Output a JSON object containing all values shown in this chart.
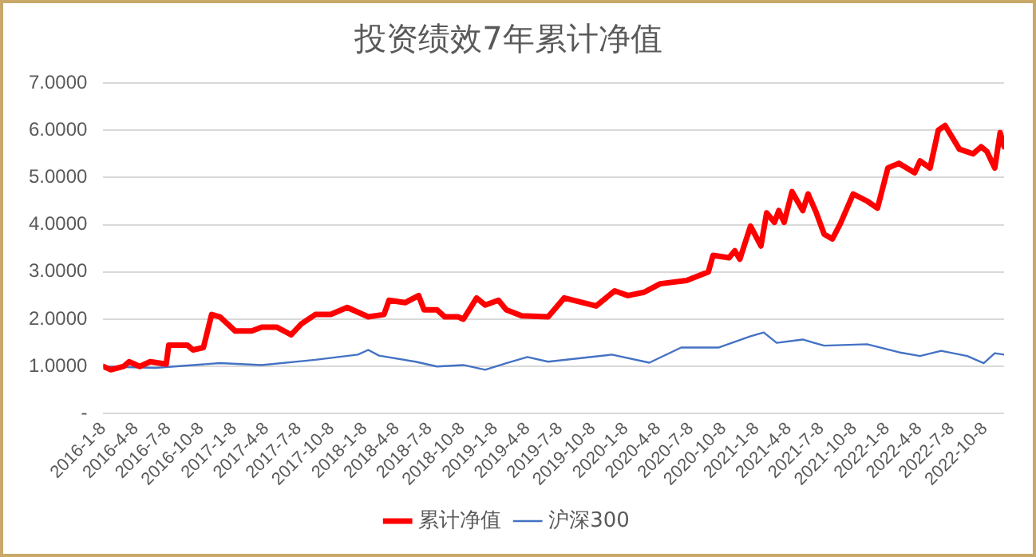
{
  "chart_data": {
    "type": "line",
    "title": "投资绩效7年累计净值",
    "xlim": [
      "2016-01-08",
      "2022-12-01"
    ],
    "xticks": [
      {
        "value": "2016-01-08",
        "label": "2016-1-8"
      },
      {
        "value": "2016-04-08",
        "label": "2016-4-8"
      },
      {
        "value": "2016-07-08",
        "label": "2016-7-8"
      },
      {
        "value": "2016-10-08",
        "label": "2016-10-8"
      },
      {
        "value": "2017-01-08",
        "label": "2017-1-8"
      },
      {
        "value": "2017-04-08",
        "label": "2017-4-8"
      },
      {
        "value": "2017-07-08",
        "label": "2017-7-8"
      },
      {
        "value": "2017-10-08",
        "label": "2017-10-8"
      },
      {
        "value": "2018-01-08",
        "label": "2018-1-8"
      },
      {
        "value": "2018-04-08",
        "label": "2018-4-8"
      },
      {
        "value": "2018-07-08",
        "label": "2018-7-8"
      },
      {
        "value": "2018-10-08",
        "label": "2018-10-8"
      },
      {
        "value": "2019-01-08",
        "label": "2019-1-8"
      },
      {
        "value": "2019-04-08",
        "label": "2019-4-8"
      },
      {
        "value": "2019-07-08",
        "label": "2019-7-8"
      },
      {
        "value": "2019-10-08",
        "label": "2019-10-8"
      },
      {
        "value": "2020-01-08",
        "label": "2020-1-8"
      },
      {
        "value": "2020-04-08",
        "label": "2020-4-8"
      },
      {
        "value": "2020-07-08",
        "label": "2020-7-8"
      },
      {
        "value": "2020-10-08",
        "label": "2020-10-8"
      },
      {
        "value": "2021-01-08",
        "label": "2021-1-8"
      },
      {
        "value": "2021-04-08",
        "label": "2021-4-8"
      },
      {
        "value": "2021-07-08",
        "label": "2021-7-8"
      },
      {
        "value": "2021-10-08",
        "label": "2021-10-8"
      },
      {
        "value": "2022-01-08",
        "label": "2022-1-8"
      },
      {
        "value": "2022-04-08",
        "label": "2022-4-8"
      },
      {
        "value": "2022-07-08",
        "label": "2022-7-8"
      },
      {
        "value": "2022-10-08",
        "label": "2022-10-8"
      }
    ],
    "ylim": [
      0,
      7
    ],
    "yticks": [
      {
        "value": 0,
        "label": "-"
      },
      {
        "value": 1,
        "label": "1.0000"
      },
      {
        "value": 2,
        "label": "2.0000"
      },
      {
        "value": 3,
        "label": "3.0000"
      },
      {
        "value": 4,
        "label": "4.0000"
      },
      {
        "value": 5,
        "label": "5.0000"
      },
      {
        "value": 6,
        "label": "6.0000"
      },
      {
        "value": 7,
        "label": "7.0000"
      }
    ],
    "grid": "y",
    "legend": "bottom",
    "marker": "none",
    "line_style": "solid",
    "series": [
      {
        "name": "累计净值",
        "color": "#ff0000",
        "x": [
          "2016-01-08",
          "2016-01-29",
          "2016-03-05",
          "2016-03-20",
          "2016-04-19",
          "2016-05-18",
          "2016-07-02",
          "2016-07-09",
          "2016-08-30",
          "2016-09-15",
          "2016-10-14",
          "2016-11-06",
          "2016-11-29",
          "2017-01-11",
          "2017-02-26",
          "2017-03-26",
          "2017-05-08",
          "2017-06-16",
          "2017-07-15",
          "2017-08-23",
          "2017-10-05",
          "2017-11-20",
          "2018-01-18",
          "2018-03-03",
          "2018-03-17",
          "2018-05-01",
          "2018-06-08",
          "2018-06-23",
          "2018-07-29",
          "2018-08-20",
          "2018-09-26",
          "2018-10-11",
          "2018-11-17",
          "2018-12-11",
          "2019-01-17",
          "2019-02-08",
          "2019-03-23",
          "2019-06-05",
          "2019-07-20",
          "2019-10-17",
          "2019-12-08",
          "2020-01-14",
          "2020-02-28",
          "2020-04-13",
          "2020-06-26",
          "2020-08-26",
          "2020-09-08",
          "2020-10-23",
          "2020-11-08",
          "2020-11-22",
          "2020-12-22",
          "2021-01-20",
          "2021-02-05",
          "2021-02-27",
          "2021-03-11",
          "2021-03-26",
          "2021-04-17",
          "2021-05-17",
          "2021-06-01",
          "2021-06-23",
          "2021-07-16",
          "2021-08-08",
          "2021-08-30",
          "2021-10-05",
          "2021-11-13",
          "2021-12-12",
          "2022-01-10",
          "2022-02-10",
          "2022-03-26",
          "2022-04-10",
          "2022-05-08",
          "2022-05-31",
          "2022-06-19",
          "2022-07-29",
          "2022-09-05",
          "2022-09-28",
          "2022-10-14",
          "2022-11-05",
          "2022-11-20",
          "2022-12-01"
        ],
        "values": [
          1.0,
          0.93,
          1.0,
          1.1,
          1.0,
          1.1,
          1.05,
          1.45,
          1.45,
          1.35,
          1.4,
          2.1,
          2.05,
          1.75,
          1.75,
          1.83,
          1.83,
          1.67,
          1.9,
          2.1,
          2.1,
          2.25,
          2.05,
          2.1,
          2.4,
          2.35,
          2.5,
          2.2,
          2.2,
          2.05,
          2.05,
          2.0,
          2.45,
          2.3,
          2.4,
          2.2,
          2.07,
          2.05,
          2.45,
          2.28,
          2.6,
          2.5,
          2.57,
          2.75,
          2.82,
          3.0,
          3.35,
          3.3,
          3.45,
          3.27,
          3.97,
          3.55,
          4.25,
          4.05,
          4.3,
          4.05,
          4.7,
          4.3,
          4.65,
          4.27,
          3.8,
          3.7,
          4.02,
          4.65,
          4.5,
          4.35,
          5.2,
          5.3,
          5.1,
          5.35,
          5.2,
          6.0,
          6.1,
          5.6,
          5.5,
          5.65,
          5.55,
          5.2,
          5.95,
          5.65
        ]
      },
      {
        "name": "沪深300",
        "color": "#4472c4",
        "x": [
          "2016-01-08",
          "2016-06-01",
          "2016-11-29",
          "2017-03-26",
          "2017-08-23",
          "2017-12-20",
          "2018-01-18",
          "2018-02-17",
          "2018-05-30",
          "2018-07-29",
          "2018-10-11",
          "2018-12-11",
          "2019-02-08",
          "2019-04-08",
          "2019-06-05",
          "2019-11-30",
          "2020-03-14",
          "2020-06-11",
          "2020-09-23",
          "2020-12-22",
          "2021-01-28",
          "2021-03-05",
          "2021-05-17",
          "2021-07-16",
          "2021-11-13",
          "2022-02-10",
          "2022-04-10",
          "2022-06-08",
          "2022-08-20",
          "2022-10-05",
          "2022-11-05",
          "2022-12-01"
        ],
        "values": [
          1.0,
          0.97,
          1.07,
          1.03,
          1.14,
          1.25,
          1.35,
          1.23,
          1.1,
          1.0,
          1.03,
          0.93,
          1.07,
          1.2,
          1.1,
          1.25,
          1.08,
          1.4,
          1.4,
          1.64,
          1.72,
          1.5,
          1.57,
          1.44,
          1.47,
          1.3,
          1.22,
          1.33,
          1.22,
          1.07,
          1.28,
          1.25
        ]
      }
    ]
  }
}
